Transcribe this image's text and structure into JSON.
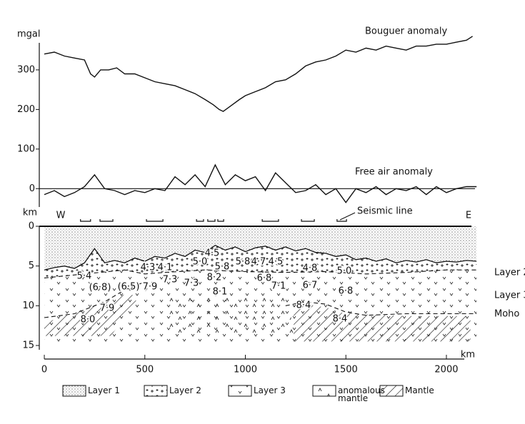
{
  "chart_data": [
    {
      "type": "line",
      "ylabel": "mgal",
      "ylim": [
        -50,
        390
      ],
      "yticks": [
        0,
        100,
        200,
        300
      ],
      "grid": false,
      "series": [
        {
          "name": "Bouguer anomaly",
          "color": "#111111",
          "x": [
            0,
            50,
            100,
            150,
            200,
            230,
            250,
            280,
            320,
            360,
            400,
            450,
            500,
            550,
            600,
            650,
            700,
            750,
            800,
            840,
            870,
            890,
            930,
            970,
            1000,
            1050,
            1100,
            1150,
            1200,
            1250,
            1300,
            1350,
            1400,
            1450,
            1500,
            1550,
            1600,
            1650,
            1700,
            1750,
            1800,
            1850,
            1900,
            1950,
            2000,
            2050,
            2100,
            2130
          ],
          "values": [
            340,
            345,
            335,
            330,
            325,
            290,
            282,
            300,
            300,
            305,
            290,
            290,
            280,
            270,
            265,
            260,
            250,
            240,
            225,
            212,
            200,
            195,
            210,
            225,
            235,
            245,
            255,
            270,
            275,
            290,
            310,
            320,
            325,
            335,
            350,
            345,
            355,
            350,
            360,
            355,
            350,
            360,
            360,
            365,
            365,
            370,
            375,
            385
          ]
        },
        {
          "name": "Free air anomaly",
          "color": "#111111",
          "x": [
            0,
            50,
            100,
            150,
            200,
            250,
            300,
            350,
            400,
            450,
            500,
            550,
            600,
            650,
            700,
            750,
            800,
            850,
            900,
            950,
            1000,
            1050,
            1100,
            1150,
            1200,
            1250,
            1300,
            1350,
            1400,
            1450,
            1500,
            1550,
            1600,
            1650,
            1700,
            1750,
            1800,
            1850,
            1900,
            1950,
            2000,
            2050,
            2100,
            2150
          ],
          "values": [
            -15,
            -5,
            -20,
            -10,
            5,
            35,
            0,
            -5,
            -15,
            -5,
            -10,
            0,
            -5,
            30,
            10,
            35,
            5,
            60,
            10,
            35,
            20,
            30,
            -5,
            40,
            15,
            -10,
            -5,
            10,
            -15,
            0,
            -35,
            0,
            -10,
            5,
            -15,
            0,
            -5,
            5,
            -15,
            5,
            -10,
            0,
            5,
            5
          ]
        }
      ]
    },
    {
      "type": "section",
      "ylabel": "km",
      "xlabel": "km",
      "ylim": [
        0,
        15
      ],
      "yticks": [
        0,
        5,
        10,
        15
      ],
      "xlim": [
        -25,
        2160
      ],
      "xticks": [
        0,
        500,
        1000,
        1500,
        2000
      ],
      "west": "W",
      "east": "E",
      "seismic_line": "Seismic line",
      "seismic_line_segments": [
        [
          180,
          230
        ],
        [
          277,
          341
        ],
        [
          508,
          590
        ],
        [
          757,
          792
        ],
        [
          813,
          849
        ],
        [
          863,
          892
        ],
        [
          1084,
          1165
        ],
        [
          1279,
          1343
        ],
        [
          1456,
          1503
        ]
      ],
      "series": [
        {
          "style": "solid",
          "x": [
            0,
            50,
            100,
            150,
            200,
            250,
            300,
            350,
            400,
            450,
            500,
            550,
            600,
            650,
            700,
            750,
            800,
            850,
            900,
            950,
            1000,
            1050,
            1100,
            1150,
            1200,
            1250,
            1300,
            1350,
            1400,
            1450,
            1500,
            1550,
            1600,
            1650,
            1700,
            1750,
            1800,
            1850,
            1900,
            1950,
            2000,
            2050,
            2100,
            2150
          ],
          "values": [
            5.5,
            5.2,
            5.0,
            5.3,
            4.6,
            2.8,
            4.6,
            4.3,
            4.6,
            4.0,
            4.4,
            3.8,
            4.0,
            3.4,
            3.8,
            3.0,
            3.3,
            2.4,
            3.0,
            2.6,
            3.2,
            2.7,
            2.5,
            3.0,
            2.6,
            3.1,
            2.8,
            3.3,
            3.4,
            3.8,
            3.6,
            4.2,
            4.0,
            4.4,
            4.1,
            4.6,
            4.3,
            4.5,
            4.2,
            4.6,
            4.4,
            4.5,
            4.3,
            4.4
          ]
        },
        {
          "name": "Layer 2",
          "style": "dashed",
          "x": [
            0,
            200,
            400,
            500,
            600,
            800,
            1000,
            1200,
            1400,
            1600,
            1800,
            2000,
            2150
          ],
          "values": [
            6.5,
            6.0,
            5.5,
            6.0,
            5.8,
            5.5,
            5.7,
            5.8,
            5.7,
            6.0,
            5.8,
            5.5,
            5.5
          ]
        },
        {
          "name": "Moho",
          "style": "dashed",
          "x": [
            0,
            150,
            300,
            400,
            500,
            1100,
            1200,
            1300,
            1400,
            1500,
            1600,
            1800,
            2150
          ],
          "values": [
            11.5,
            11,
            9.5,
            8,
            7,
            null,
            10,
            9.5,
            9.8,
            10.8,
            11.2,
            11,
            11
          ]
        }
      ],
      "annotations": [
        "Layer 3"
      ],
      "velocity_labels": [
        "5·4",
        "4·3",
        "4·1",
        "5·0",
        "4·5",
        "5·8",
        "5·8",
        "4·7",
        "4·5",
        "4·8",
        "5·0",
        "(6·8)",
        "(6·5)",
        "7·9",
        "7·3",
        "7·3",
        "8·2",
        "6·8",
        "7·1",
        "6·7",
        "6·8",
        "8·1",
        "7·9",
        "8·4",
        "8·0",
        "8·4"
      ],
      "legend": [
        "Layer 1",
        "Layer 2",
        "Layer 3",
        "anomalous mantle",
        "Mantle"
      ]
    }
  ]
}
